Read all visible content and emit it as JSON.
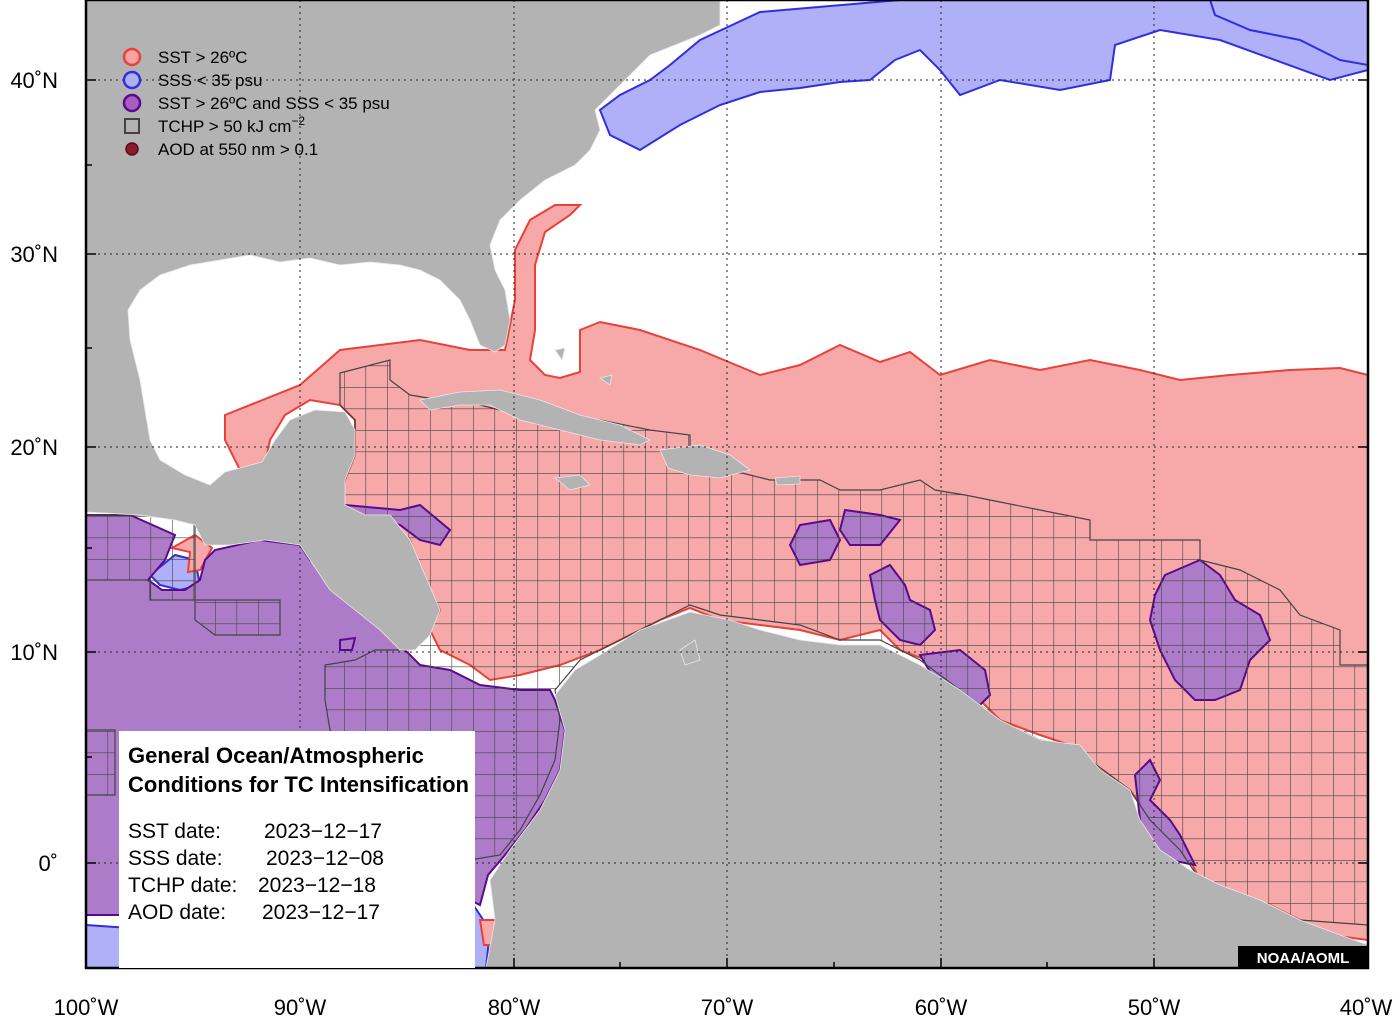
{
  "legend": {
    "items": [
      {
        "label": "SST > 26ºC",
        "kind": "circle",
        "fill": "#f7a3a3",
        "stroke": "#e8413a"
      },
      {
        "label": "SSS < 35 psu",
        "kind": "circle",
        "fill": "#b0b0f5",
        "stroke": "#2f2fe0"
      },
      {
        "label": "SST > 26ºC and SSS < 35 psu",
        "kind": "circle",
        "fill": "#a75fc2",
        "stroke": "#5a0a8a"
      },
      {
        "label": "TCHP > 50 kJ cm",
        "label_sup": "−2",
        "kind": "square",
        "fill": "none",
        "stroke": "#444444"
      },
      {
        "label": "AOD at 550 nm > 0.1",
        "kind": "dot",
        "fill": "#8b1a2a",
        "stroke": "#5a0a1a"
      }
    ]
  },
  "info_box": {
    "title_line1": "General Ocean/Atmospheric",
    "title_line2": "Conditions for TC Intensification",
    "rows": [
      {
        "label": "SST date:",
        "value": "2023−12−17"
      },
      {
        "label": "SSS date:",
        "value": "2023−12−08"
      },
      {
        "label": "TCHP date:",
        "value": "2023−12−18"
      },
      {
        "label": "AOD date:",
        "value": "2023−12−17"
      }
    ]
  },
  "credit": "NOAA/AOML",
  "axes": {
    "lon_labels": [
      "100˚W",
      "90˚W",
      "80˚W",
      "70˚W",
      "60˚W",
      "50˚W",
      "40˚W"
    ],
    "lat_labels": [
      "40˚N",
      "30˚N",
      "20˚N",
      "10˚N",
      "0˚"
    ]
  },
  "colors": {
    "land": "#b3b3b3",
    "ocean": "#ffffff",
    "sst": "#f7a8a8",
    "sst_edge": "#e8413a",
    "sss": "#b0b0f8",
    "sss_edge": "#2f2fe0",
    "both": "#ad7cc8",
    "both_edge": "#5a0a8a",
    "grid": "#444444"
  }
}
